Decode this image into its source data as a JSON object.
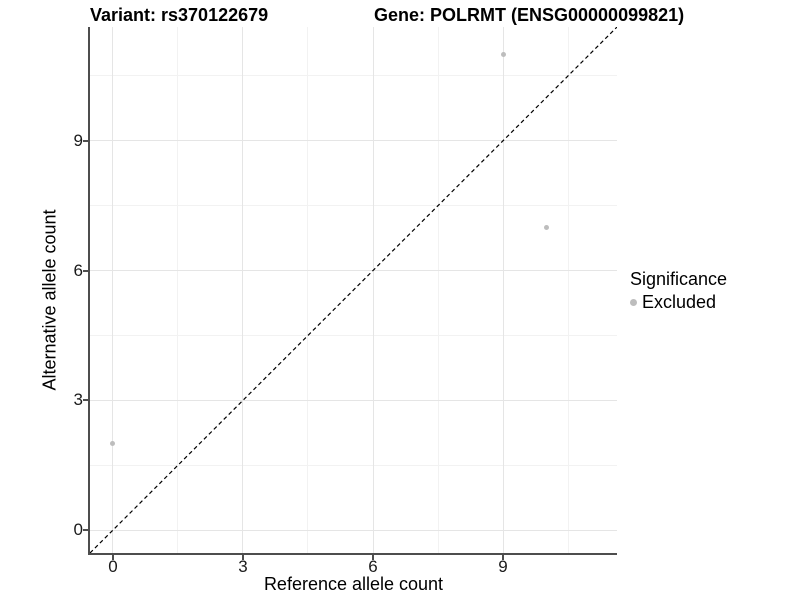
{
  "titles": {
    "variant": "Variant: rs370122679",
    "gene": "Gene: POLRMT (ENSG00000099821)"
  },
  "legend": {
    "title": "Significance",
    "items": [
      {
        "label": "Excluded",
        "color": "#bdbdbd"
      }
    ]
  },
  "chart_data": {
    "type": "scatter",
    "title": "Variant: rs370122679   Gene: POLRMT (ENSG00000099821)",
    "xlabel": "Reference allele count",
    "ylabel": "Alternative allele count",
    "xlim": [
      -0.53,
      11.63
    ],
    "ylim": [
      -0.53,
      11.63
    ],
    "x_ticks": [
      0,
      3,
      6,
      9
    ],
    "y_ticks": [
      0,
      3,
      6,
      9
    ],
    "x_minor_ticks": [
      1.5,
      4.5,
      7.5,
      10.5
    ],
    "y_minor_ticks": [
      1.5,
      4.5,
      7.5,
      10.5
    ],
    "grid": true,
    "legend_position": "right",
    "series": [
      {
        "name": "Excluded",
        "color": "#bdbdbd",
        "points": [
          [
            0,
            2
          ],
          [
            9,
            11
          ],
          [
            10,
            7
          ]
        ]
      }
    ],
    "reference_line": {
      "type": "identity",
      "slope": 1,
      "intercept": 0,
      "style": "dashed",
      "color": "#000000"
    }
  },
  "colors": {
    "axis_line": "#4d4d4d",
    "grid_major": "#e5e5e5",
    "grid_minor": "#f2f2f2",
    "point": "#bdbdbd"
  }
}
